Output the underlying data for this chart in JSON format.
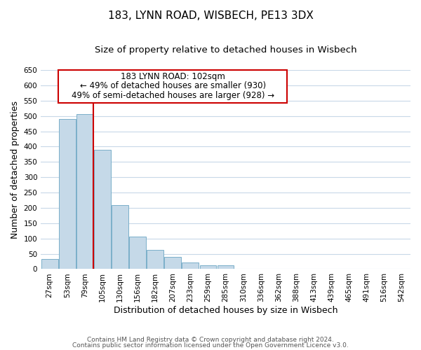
{
  "title": "183, LYNN ROAD, WISBECH, PE13 3DX",
  "subtitle": "Size of property relative to detached houses in Wisbech",
  "xlabel": "Distribution of detached houses by size in Wisbech",
  "ylabel": "Number of detached properties",
  "bar_labels": [
    "27sqm",
    "53sqm",
    "79sqm",
    "105sqm",
    "130sqm",
    "156sqm",
    "182sqm",
    "207sqm",
    "233sqm",
    "259sqm",
    "285sqm",
    "310sqm",
    "336sqm",
    "362sqm",
    "388sqm",
    "413sqm",
    "439sqm",
    "465sqm",
    "491sqm",
    "516sqm",
    "542sqm"
  ],
  "bar_values": [
    33,
    491,
    505,
    390,
    208,
    107,
    62,
    40,
    22,
    13,
    12,
    1,
    0,
    0,
    0,
    0,
    0,
    0,
    0,
    1,
    1
  ],
  "bar_color": "#c5d9e8",
  "bar_edgecolor": "#7aafc9",
  "vline_x": 2.5,
  "vline_color": "#cc0000",
  "ylim": [
    0,
    650
  ],
  "yticks": [
    0,
    50,
    100,
    150,
    200,
    250,
    300,
    350,
    400,
    450,
    500,
    550,
    600,
    650
  ],
  "annotation_title": "183 LYNN ROAD: 102sqm",
  "annotation_line1": "← 49% of detached houses are smaller (930)",
  "annotation_line2": "49% of semi-detached houses are larger (928) →",
  "annotation_box_edgecolor": "#cc0000",
  "footer_line1": "Contains HM Land Registry data © Crown copyright and database right 2024.",
  "footer_line2": "Contains public sector information licensed under the Open Government Licence v3.0.",
  "background_color": "#ffffff",
  "grid_color": "#c8d8e8",
  "title_fontsize": 11,
  "subtitle_fontsize": 9.5,
  "axis_label_fontsize": 9,
  "tick_fontsize": 7.5,
  "annotation_fontsize": 8.5,
  "footer_fontsize": 6.5
}
